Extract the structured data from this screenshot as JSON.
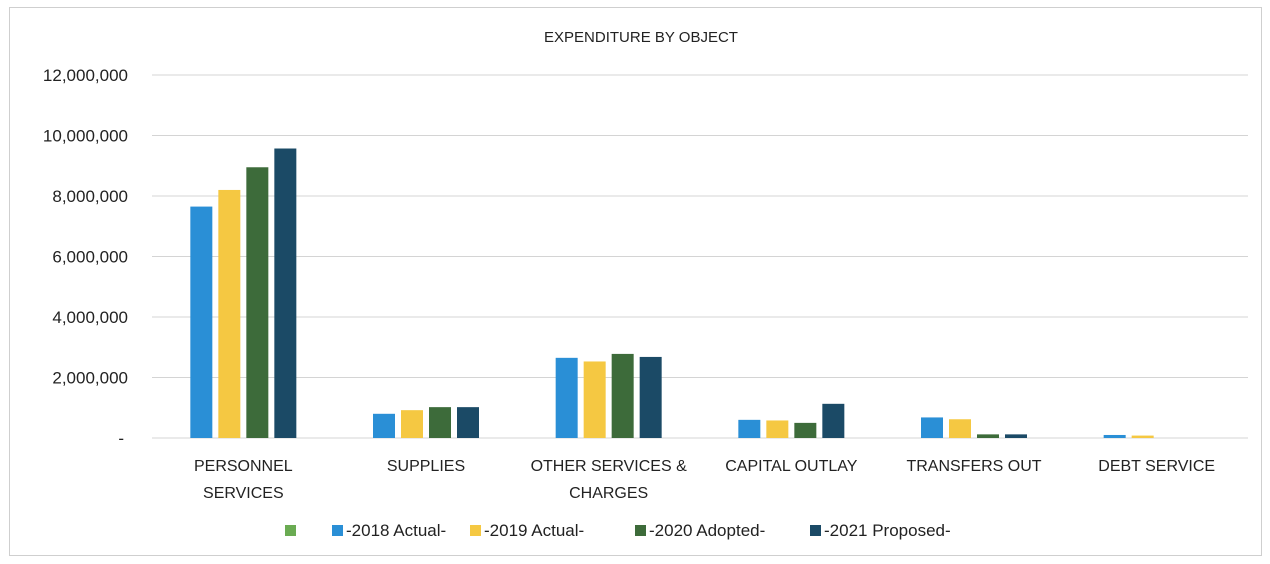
{
  "chart_data": {
    "type": "bar",
    "title": "EXPENDITURE BY OBJECT",
    "categories": [
      [
        "PERSONNEL",
        "SERVICES"
      ],
      [
        "SUPPLIES"
      ],
      [
        "OTHER SERVICES &",
        "CHARGES"
      ],
      [
        "CAPITAL OUTLAY"
      ],
      [
        "TRANSFERS OUT"
      ],
      [
        "DEBT SERVICE"
      ]
    ],
    "series": [
      {
        "name": "-2018 Actual-",
        "color": "#2a8fd6",
        "values": [
          7650000,
          800000,
          2650000,
          600000,
          680000,
          100000
        ]
      },
      {
        "name": "-2019 Actual-",
        "color": "#f5c842",
        "values": [
          8200000,
          920000,
          2530000,
          580000,
          620000,
          80000
        ]
      },
      {
        "name": "-2020 Adopted-",
        "color": "#3d6b3a",
        "values": [
          8950000,
          1020000,
          2780000,
          500000,
          120000,
          0
        ]
      },
      {
        "name": "-2021 Proposed-",
        "color": "#1b4a66",
        "values": [
          9570000,
          1020000,
          2680000,
          1130000,
          120000,
          0
        ]
      }
    ],
    "legend_extra_swatch": {
      "color": "#6aab52",
      "name": ""
    },
    "ylim": [
      0,
      12000000
    ],
    "yticks": [
      0,
      2000000,
      4000000,
      6000000,
      8000000,
      10000000,
      12000000
    ],
    "ytick_labels": [
      "-",
      "2,000,000",
      "4,000,000",
      "6,000,000",
      "8,000,000",
      "10,000,000",
      "12,000,000"
    ],
    "grid": true,
    "legend_position": "bottom"
  }
}
